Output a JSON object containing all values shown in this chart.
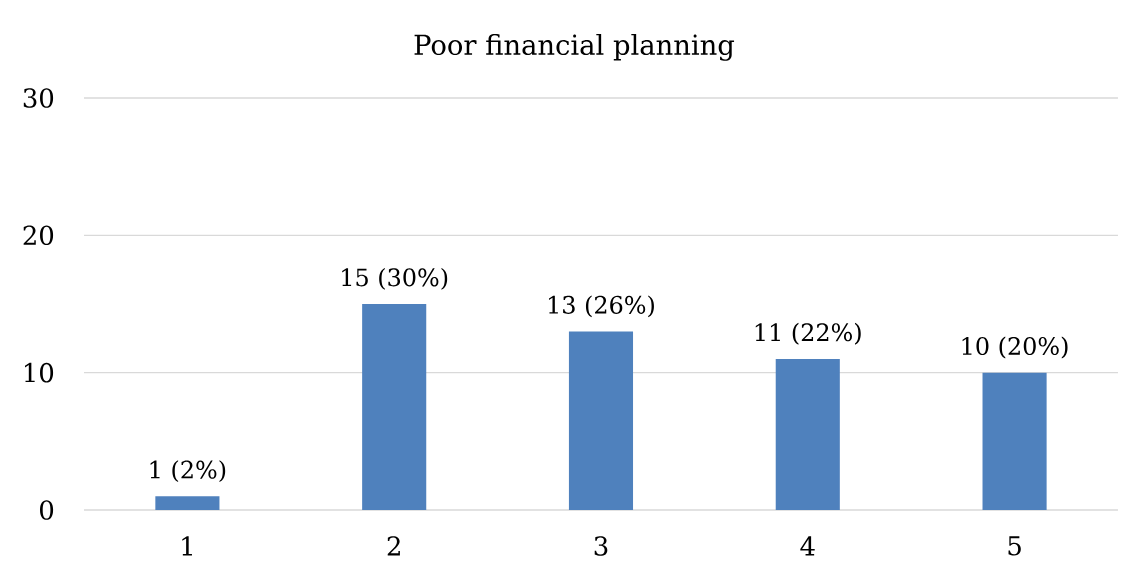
{
  "chart_data": {
    "type": "bar",
    "title": "Poor financial planning",
    "categories": [
      "1",
      "2",
      "3",
      "4",
      "5"
    ],
    "values": [
      1,
      15,
      13,
      11,
      10
    ],
    "color": "#4f81bd",
    "ylim": [
      0,
      30
    ],
    "yticks": [
      0,
      10,
      20,
      30
    ],
    "grid": "y",
    "value_labels": [
      "1 (2%)",
      "15 (30%)",
      "13 (26%)",
      "11 (22%)",
      "10 (20%)"
    ]
  }
}
